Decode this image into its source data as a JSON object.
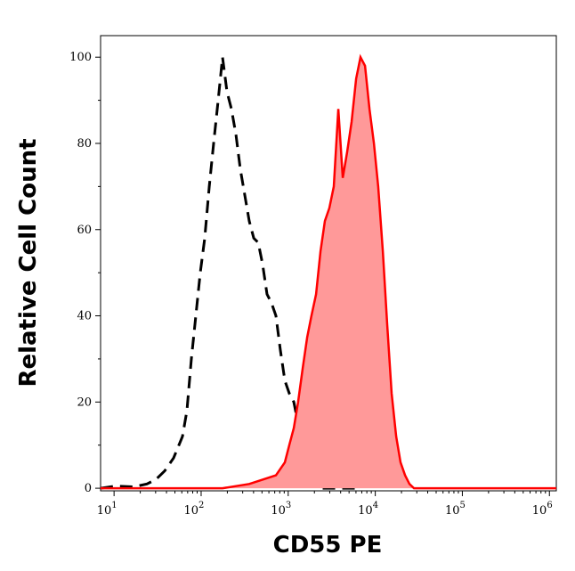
{
  "chart_data": {
    "type": "histogram-overlay",
    "x_label": "CD55 PE",
    "y_label": "Relative Cell Count",
    "log_x": true,
    "xlim": [
      7,
      1200000
    ],
    "ylim": [
      -0.6,
      105
    ],
    "xticks": [
      {
        "value": 10,
        "label": "10",
        "exponent": "1"
      },
      {
        "value": 100,
        "label": "10",
        "exponent": "2"
      },
      {
        "value": 1000,
        "label": "10",
        "exponent": "3"
      },
      {
        "value": 10000,
        "label": "10",
        "exponent": "4"
      },
      {
        "value": 100000,
        "label": "10",
        "exponent": "5"
      },
      {
        "value": 1000000,
        "label": "10",
        "exponent": "6"
      }
    ],
    "yticks": [
      0,
      20,
      40,
      60,
      80,
      100
    ],
    "series": [
      {
        "color": "#000000",
        "dashed": true,
        "filled": false,
        "x": [
          7,
          10.4,
          16.7,
          23.8,
          30.1,
          38.1,
          48.2,
          61.1,
          68.7,
          77.3,
          86.9,
          97.8,
          110,
          124,
          139,
          157,
          176,
          198,
          223,
          251,
          282,
          317,
          357,
          402,
          452,
          508,
          571,
          643,
          723,
          813,
          915,
          1030,
          1160,
          1300,
          1470,
          1650,
          1850,
          2350,
          3760,
          6020
        ],
        "values": [
          0,
          0.5,
          0.3,
          1,
          2,
          4,
          7,
          12,
          18,
          30,
          40,
          50,
          58,
          70,
          80,
          90,
          100,
          92,
          88,
          82,
          74,
          68,
          62,
          58,
          57,
          52,
          45,
          43,
          40,
          32,
          25,
          22,
          20,
          15,
          8,
          3,
          1,
          0,
          0,
          0
        ]
      },
      {
        "color": "#ff0000",
        "fill": "#ff9999",
        "dashed": false,
        "filled": true,
        "x": [
          7,
          176,
          251,
          357,
          508,
          723,
          915,
          1030,
          1160,
          1300,
          1470,
          1650,
          1850,
          2090,
          2350,
          2640,
          2970,
          3340,
          3760,
          4230,
          4750,
          5350,
          6020,
          6770,
          7620,
          8570,
          9640,
          10800,
          12200,
          13700,
          15400,
          17400,
          19500,
          22000,
          24700,
          27800,
          63400,
          1200000
        ],
        "values": [
          0,
          0,
          0.5,
          1,
          2,
          3,
          6,
          10,
          14,
          20,
          28,
          35,
          40,
          45,
          55,
          62,
          65,
          70,
          88,
          72,
          78,
          85,
          95,
          100,
          98,
          88,
          80,
          70,
          55,
          38,
          22,
          12,
          6,
          3,
          1,
          0,
          0,
          0
        ]
      }
    ]
  }
}
